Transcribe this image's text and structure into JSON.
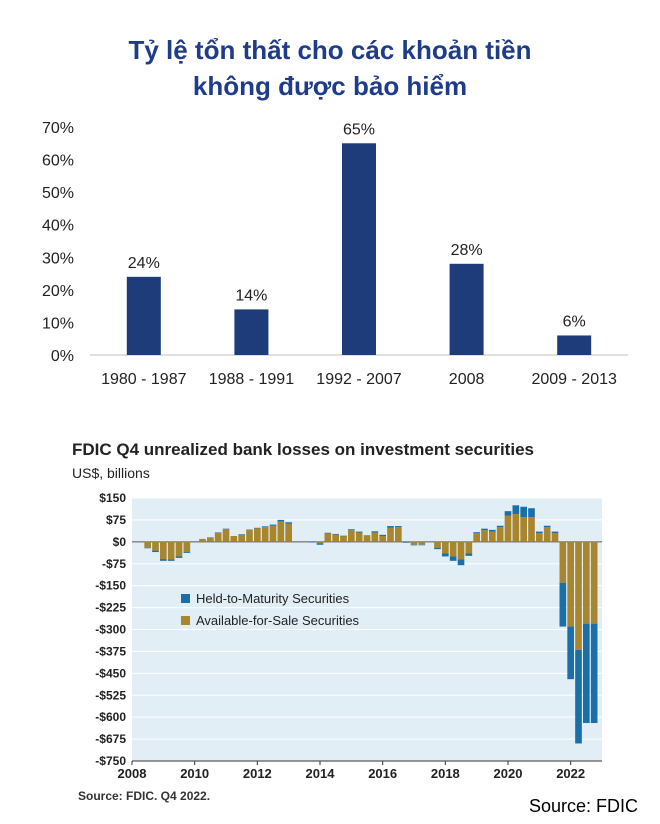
{
  "title": {
    "line1": "Tỷ lệ tổn thất cho các khoản tiền",
    "line2": "không được bảo hiểm"
  },
  "chart_data": [
    {
      "type": "bar",
      "categories": [
        "1980 - 1987",
        "1988 - 1991",
        "1992 - 2007",
        "2008",
        "2009 - 2013"
      ],
      "values": [
        24,
        14,
        65,
        28,
        6
      ],
      "value_labels": [
        "24%",
        "14%",
        "65%",
        "28%",
        "6%"
      ],
      "ylim": [
        0,
        70
      ],
      "yticks": [
        0,
        10,
        20,
        30,
        40,
        50,
        60,
        70
      ],
      "ytick_labels": [
        "0%",
        "10%",
        "20%",
        "30%",
        "40%",
        "50%",
        "60%",
        "70%"
      ],
      "color": "#1f3c7a",
      "grid": false
    },
    {
      "type": "bar",
      "stacked": true,
      "title": "FDIC Q4 unrealized bank losses on investment securities",
      "subtitle": "US$, billions",
      "ylim": [
        -750,
        150
      ],
      "yticks": [
        150,
        75,
        0,
        -75,
        -150,
        -225,
        -300,
        -375,
        -450,
        -525,
        -600,
        -675,
        -750
      ],
      "ytick_labels": [
        "$150",
        "$75",
        "$0",
        "-$75",
        "-$150",
        "-$225",
        "-$300",
        "-$375",
        "-$450",
        "-$525",
        "-$600",
        "-$675",
        "-$750"
      ],
      "xlim": [
        2008,
        2023
      ],
      "xticks": [
        2008,
        2010,
        2012,
        2014,
        2016,
        2018,
        2020,
        2022
      ],
      "x": [
        2008.25,
        2008.5,
        2008.75,
        2009,
        2009.25,
        2009.5,
        2009.75,
        2010,
        2010.25,
        2010.5,
        2010.75,
        2011,
        2011.25,
        2011.5,
        2011.75,
        2012,
        2012.25,
        2012.5,
        2012.75,
        2013,
        2013.25,
        2013.5,
        2013.75,
        2014,
        2014.25,
        2014.5,
        2014.75,
        2015,
        2015.25,
        2015.5,
        2015.75,
        2016,
        2016.25,
        2016.5,
        2016.75,
        2017,
        2017.25,
        2017.5,
        2017.75,
        2018,
        2018.25,
        2018.5,
        2018.75,
        2019,
        2019.25,
        2019.5,
        2019.75,
        2020,
        2020.25,
        2020.5,
        2020.75,
        2021,
        2021.25,
        2021.5,
        2021.75,
        2022,
        2022.25,
        2022.5,
        2022.75
      ],
      "series": [
        {
          "name": "Held-to-Maturity Securities",
          "color": "#1a6fa8",
          "values": [
            0,
            -2,
            -5,
            -6,
            -5,
            -5,
            -3,
            0,
            0,
            1,
            2,
            2,
            0,
            1,
            2,
            2,
            3,
            4,
            5,
            5,
            0,
            0,
            -2,
            -5,
            1,
            2,
            1,
            3,
            3,
            2,
            4,
            4,
            5,
            4,
            -3,
            -2,
            -1,
            0,
            -5,
            -10,
            -15,
            -20,
            -8,
            3,
            5,
            6,
            5,
            15,
            30,
            35,
            30,
            5,
            5,
            5,
            -150,
            -180,
            -320,
            -340,
            -340
          ],
          "ends": [
            0,
            -22,
            -35,
            -65,
            -65,
            -55,
            -38,
            0,
            10,
            15,
            32,
            45,
            20,
            26,
            42,
            48,
            53,
            59,
            75,
            67,
            0,
            0,
            -2,
            -10,
            31,
            27,
            21,
            43,
            35,
            22,
            36,
            24,
            54,
            54,
            -3,
            -12,
            -11,
            0,
            -25,
            -50,
            -65,
            -80,
            -48,
            33,
            45,
            41,
            55,
            105,
            125,
            120,
            115,
            35,
            55,
            35,
            -290,
            -470,
            -690,
            -620,
            -620
          ]
        },
        {
          "name": "Available-for-Sale Securities",
          "color": "#a8862e",
          "values": [
            0,
            -20,
            -30,
            -59,
            -60,
            -50,
            -35,
            0,
            10,
            14,
            30,
            43,
            20,
            25,
            40,
            46,
            50,
            55,
            70,
            62,
            0,
            0,
            0,
            -5,
            30,
            25,
            20,
            40,
            32,
            20,
            32,
            20,
            49,
            50,
            0,
            -10,
            -10,
            0,
            -20,
            -40,
            -50,
            -60,
            -40,
            30,
            40,
            35,
            50,
            90,
            95,
            85,
            85,
            30,
            50,
            30,
            -140,
            -290,
            -370,
            -280,
            -280
          ]
        }
      ],
      "legend_placement": "center-left",
      "source": "Source: FDIC. Q4 2022."
    }
  ],
  "footer": "Source: FDIC"
}
